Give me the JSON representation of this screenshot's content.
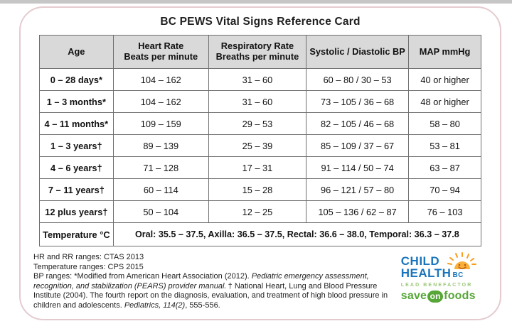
{
  "title": "BC PEWS Vital Signs Reference Card",
  "table": {
    "headers": [
      "Age",
      "Heart Rate\nBeats per minute",
      "Respiratory Rate\nBreaths per minute",
      "Systolic / Diastolic BP",
      "MAP mmHg"
    ],
    "col_widths_pct": [
      16.7,
      21.6,
      22.1,
      23.2,
      16.4
    ],
    "rows": [
      {
        "age": "0 – 28 days*",
        "hr": "104 – 162",
        "rr": "31 – 60",
        "bp": "60 – 80 / 30 – 53",
        "map": "40 or higher"
      },
      {
        "age": "1 – 3 months*",
        "hr": "104 – 162",
        "rr": "31 – 60",
        "bp": "73 – 105 / 36 – 68",
        "map": "48 or higher"
      },
      {
        "age": "4 – 11 months*",
        "hr": "109 – 159",
        "rr": "29 – 53",
        "bp": "82 – 105 / 46 – 68",
        "map": "58 – 80"
      },
      {
        "age": "1 – 3 years†",
        "hr": "89 – 139",
        "rr": "25 – 39",
        "bp": "85 – 109 / 37 – 67",
        "map": "53 – 81"
      },
      {
        "age": "4 – 6 years†",
        "hr": "71 – 128",
        "rr": "17 – 31",
        "bp": "91 – 114 / 50 – 74",
        "map": "63 – 87"
      },
      {
        "age": "7 – 11 years†",
        "hr": "60 – 114",
        "rr": "15 – 28",
        "bp": "96 – 121 / 57 – 80",
        "map": "70 – 94"
      },
      {
        "age": "12 plus years†",
        "hr": "50 – 104",
        "rr": "12 – 25",
        "bp": "105 – 136 / 62 – 87",
        "map": "76 – 103"
      }
    ],
    "temperature_row": {
      "label": "Temperature °C",
      "value": "Oral: 35.5 – 37.5, Axilla: 36.5 – 37.5, Rectal: 36.6 – 38.0, Temporal: 36.3 – 37.8"
    }
  },
  "footnotes": {
    "line1": "HR and RR ranges: CTAS 2013",
    "line2": "Temperature ranges: CPS 2015",
    "bp_note_segments": [
      {
        "text": "BP ranges: *Modified from American Heart Association (2012). ",
        "italic": false
      },
      {
        "text": "Pediatric emergency assessment, recognition, and stabilization (PEARS) provider manual.",
        "italic": true
      },
      {
        "text": " † National Heart, Lung and Blood Pressure Institute (2004). The fourth report on the diagnosis, evaluation, and treatment of high blood pressure in children and adolescents. ",
        "italic": false
      },
      {
        "text": "Pediatrics, 114(2)",
        "italic": true
      },
      {
        "text": ", 555-556.",
        "italic": false
      }
    ]
  },
  "logos": {
    "child_health": {
      "line1": "CHILD",
      "line2": "HEALTH",
      "suffix": "BC",
      "benefactor": "LEAD BENEFACTOR"
    },
    "save_on_foods": {
      "part1": "save",
      "part2": "on",
      "part3": "foods"
    }
  },
  "colors": {
    "header_fill": "#d9d9d9",
    "table_border": "#6e6e6e",
    "card_border": "#e4cbcf",
    "logo_blue": "#1b75bc",
    "sun_orange": "#f99d1c",
    "benefactor_green": "#9cc87a",
    "save_on_foods_green": "#57a638"
  }
}
